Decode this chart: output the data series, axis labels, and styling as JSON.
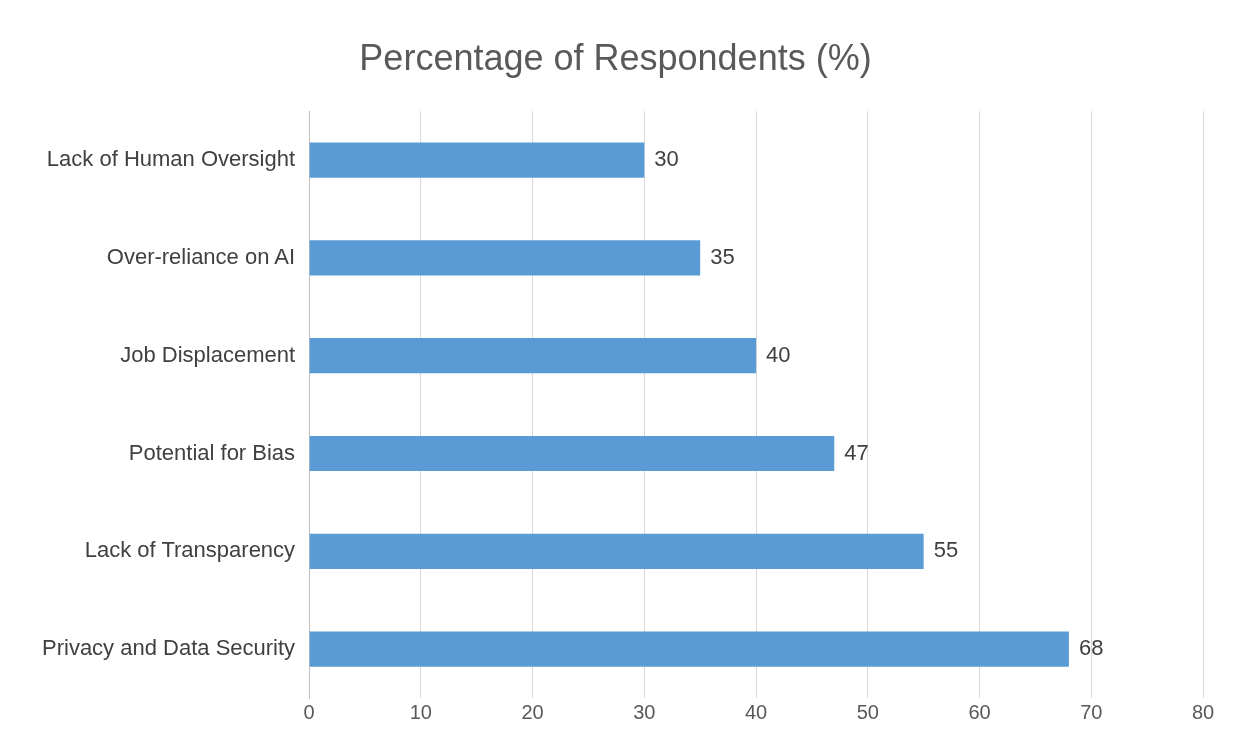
{
  "chart_data": {
    "type": "bar",
    "orientation": "horizontal",
    "title": "Percentage of Respondents (%)",
    "categories": [
      "Lack of Human Oversight",
      "Over-reliance on AI",
      "Job Displacement",
      "Potential for Bias",
      "Lack of Transparency",
      "Privacy and Data Security"
    ],
    "values": [
      30,
      35,
      40,
      47,
      55,
      68
    ],
    "color": "#5b9bd5",
    "xlim": [
      0,
      80
    ],
    "xticks": [
      0,
      10,
      20,
      30,
      40,
      50,
      60,
      70,
      80
    ],
    "grid": "x",
    "data_labels": true,
    "legend": false
  }
}
